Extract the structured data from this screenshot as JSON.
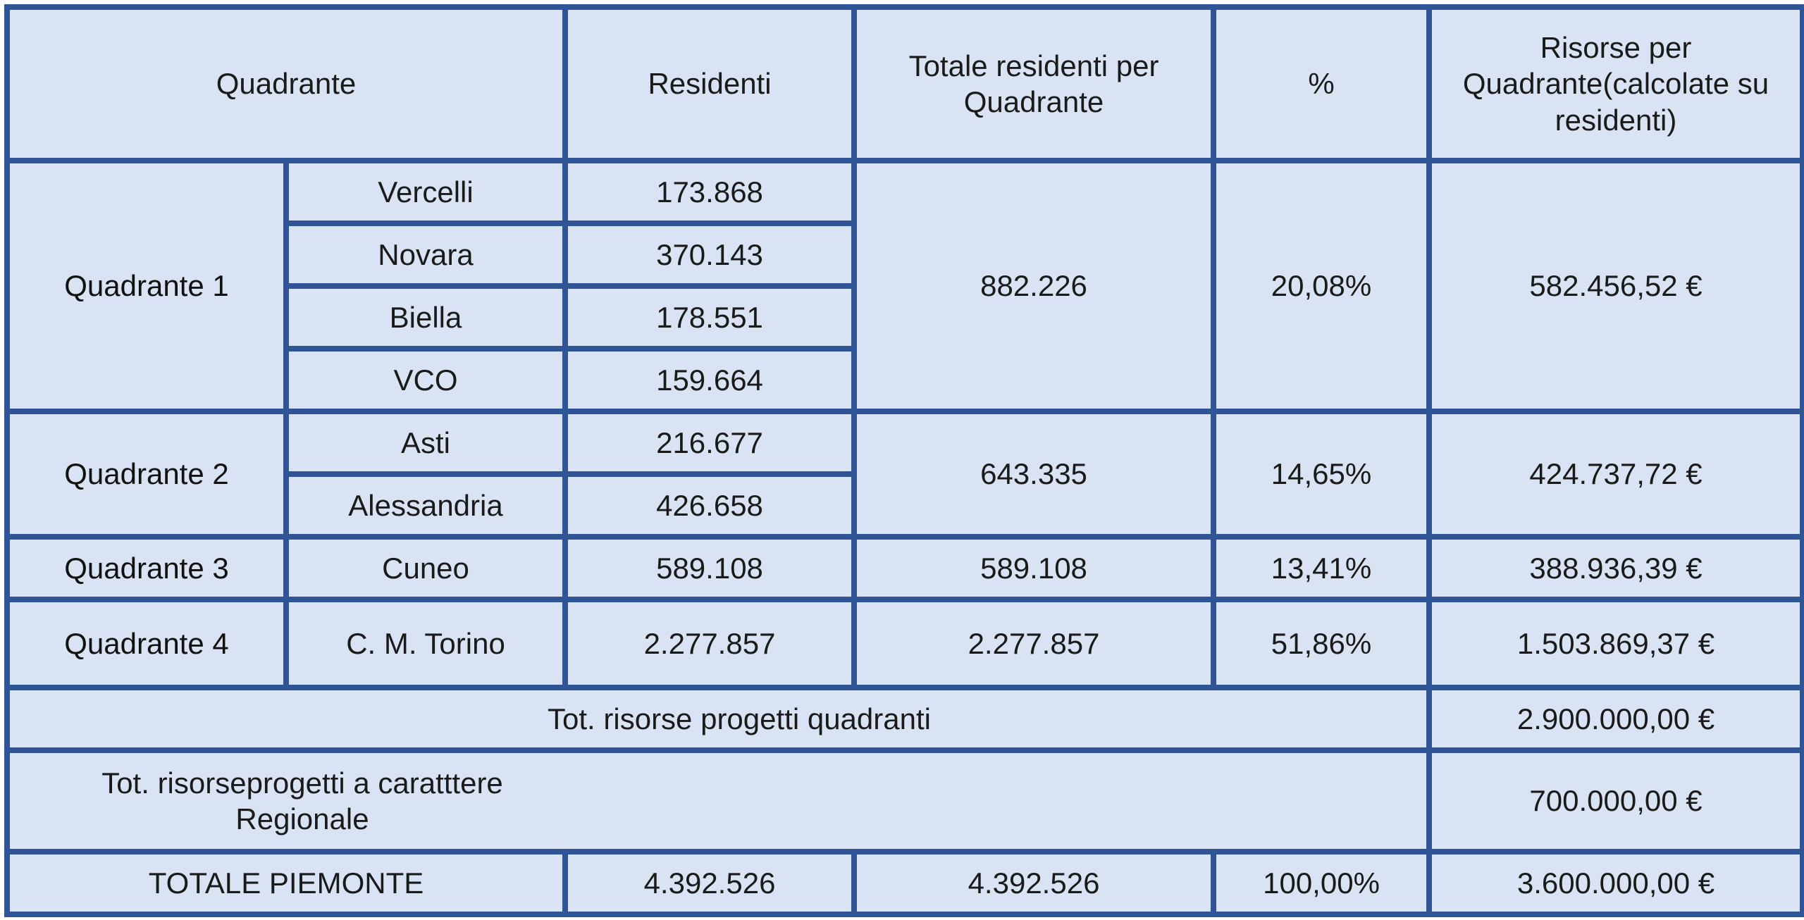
{
  "header": {
    "quadrante": "Quadrante",
    "residenti": "Residenti",
    "totale_residenti": "Totale residenti per Quadrante",
    "percent": "%",
    "risorse": "Risorse per Quadrante(calcolate su residenti)"
  },
  "quadranti": [
    {
      "name": "Quadrante 1",
      "totale": "882.226",
      "percent": "20,08%",
      "risorse": "582.456,52 €",
      "province": [
        {
          "name": "Vercelli",
          "residenti": "173.868"
        },
        {
          "name": "Novara",
          "residenti": "370.143"
        },
        {
          "name": "Biella",
          "residenti": "178.551"
        },
        {
          "name": "VCO",
          "residenti": "159.664"
        }
      ]
    },
    {
      "name": "Quadrante 2",
      "totale": "643.335",
      "percent": "14,65%",
      "risorse": "424.737,72 €",
      "province": [
        {
          "name": "Asti",
          "residenti": "216.677"
        },
        {
          "name": "Alessandria",
          "residenti": "426.658"
        }
      ]
    },
    {
      "name": "Quadrante 3",
      "totale": "589.108",
      "percent": "13,41%",
      "risorse": "388.936,39 €",
      "province": [
        {
          "name": "Cuneo",
          "residenti": "589.108"
        }
      ]
    },
    {
      "name": "Quadrante 4",
      "totale": "2.277.857",
      "percent": "51,86%",
      "risorse": "1.503.869,37 €",
      "province": [
        {
          "name": "C. M. Torino",
          "residenti": "2.277.857"
        }
      ]
    }
  ],
  "tot_quadranti": {
    "label": "Tot. risorse progetti quadranti",
    "value": "2.900.000,00 €"
  },
  "tot_regionale": {
    "label": "Tot. risorseprogetti a caratttere Regionale",
    "value": "700.000,00 €"
  },
  "totale_piemonte": {
    "label": "TOTALE PIEMONTE",
    "residenti": "4.392.526",
    "totale": "4.392.526",
    "percent": "100,00%",
    "risorse": "3.600.000,00 €"
  }
}
